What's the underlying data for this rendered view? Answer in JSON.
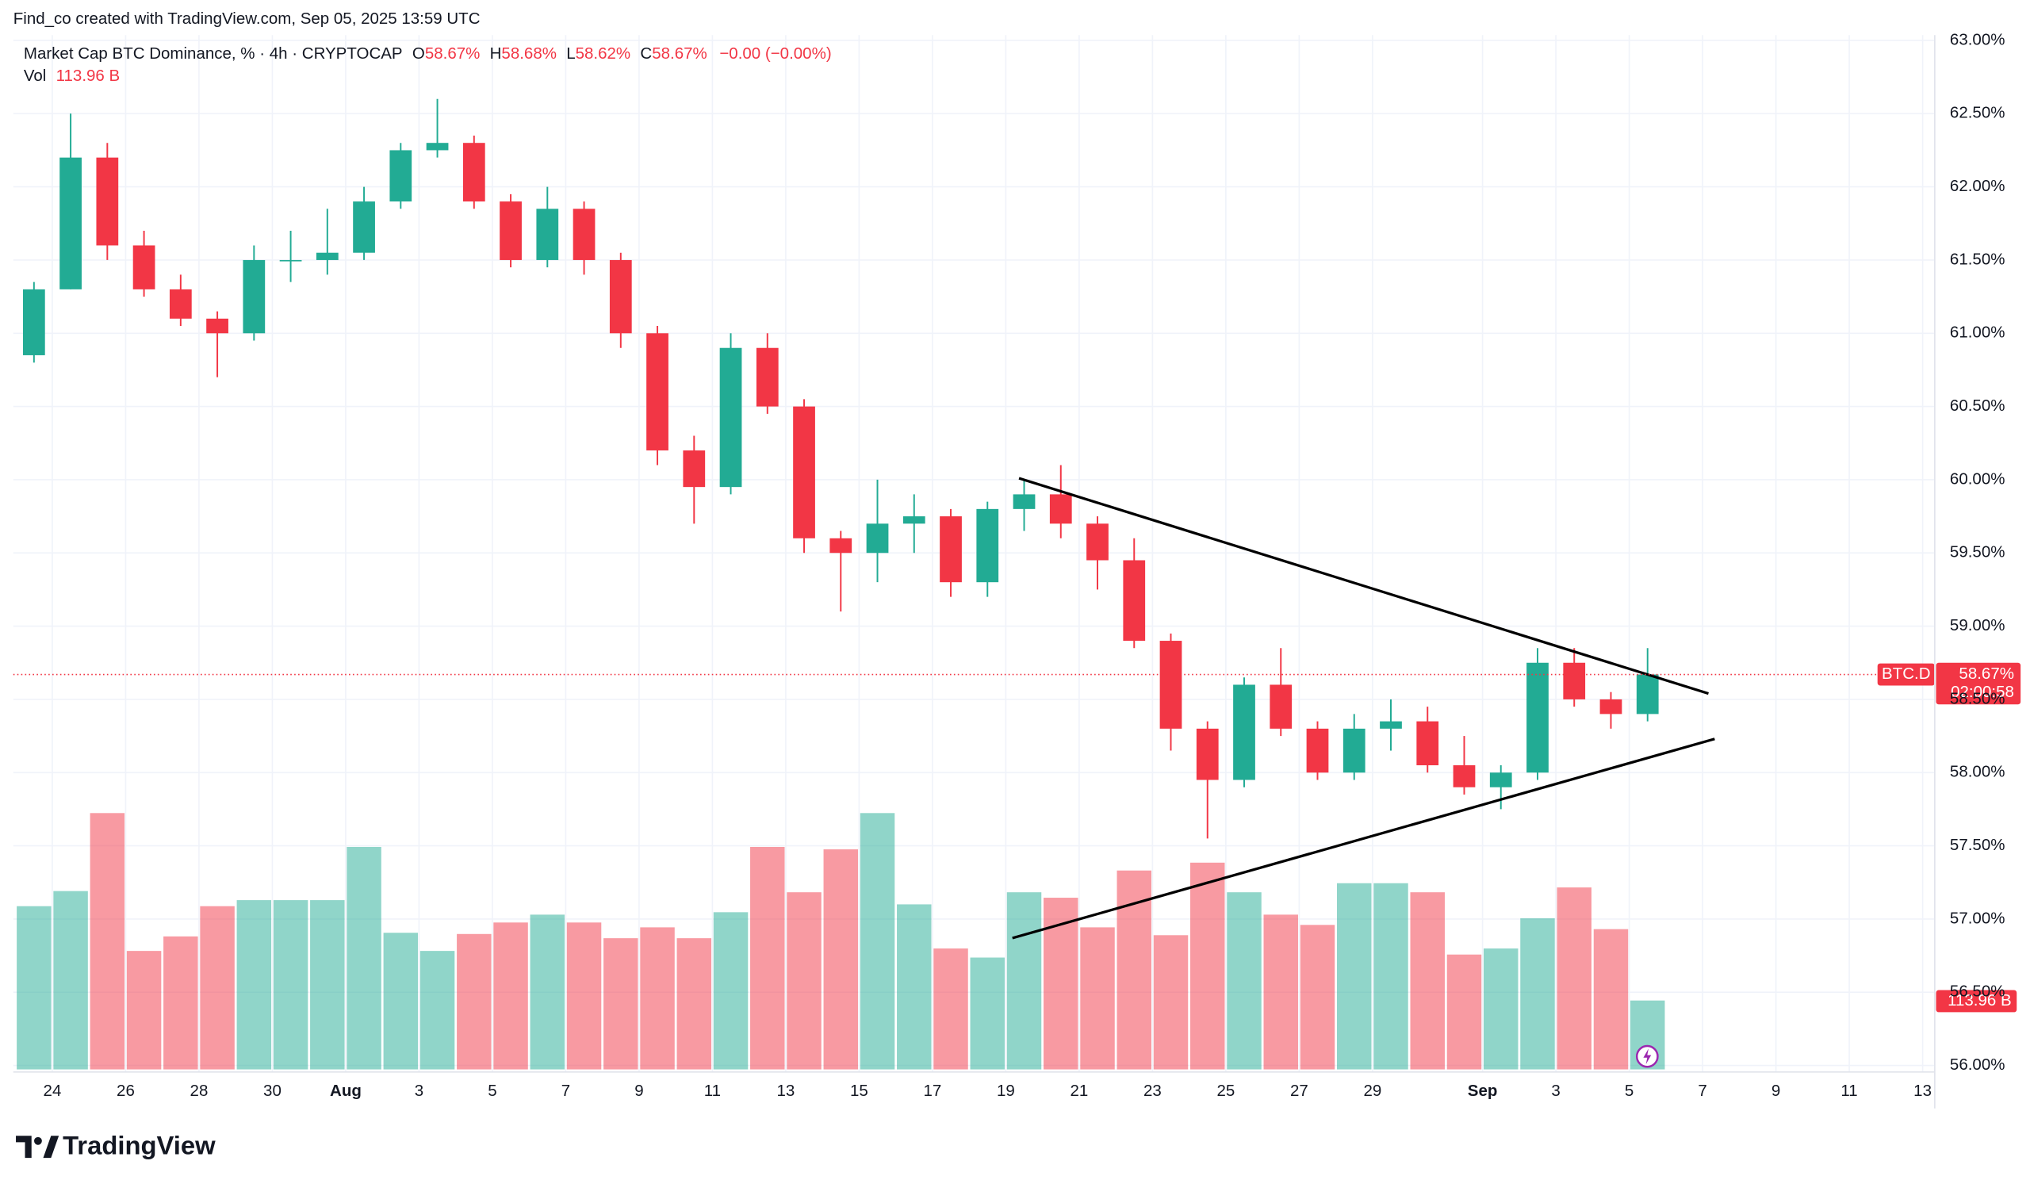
{
  "header": {
    "credit": "Find_co created with TradingView.com, Sep 05, 2025 13:59 UTC",
    "symbol": "Market Cap BTC Dominance, % · 4h · CRYPTOCAP",
    "o_key": "O",
    "o": "58.67%",
    "h_key": "H",
    "h": "58.68%",
    "l_key": "L",
    "l": "58.62%",
    "c_key": "C",
    "c": "58.67%",
    "change": "−0.00 (−0.00%)",
    "vol_key": "Vol",
    "vol": "113.96 B"
  },
  "brand": "TradingView",
  "chart_data": {
    "type": "candlestick",
    "x": [
      0.5,
      1.5,
      2.5,
      3.5,
      4.5,
      5.5,
      6.5,
      7.5,
      8.5,
      9.5,
      10.5,
      11.5,
      12.5,
      13.5,
      14.5,
      15.5,
      16.5,
      17.5,
      18.5,
      19.5,
      20.5,
      21.5,
      22.5,
      23.5,
      24.5,
      25.5,
      26.5,
      27.5,
      28.5,
      29.5,
      30.5,
      31.5,
      32.5,
      33.5,
      34.5,
      35.5,
      36.5,
      37.5,
      38.5,
      39.5,
      40.5,
      41.5,
      42.5,
      43.5,
      44.5
    ],
    "open": [
      60.85,
      61.3,
      62.2,
      61.6,
      61.3,
      61.1,
      61.0,
      61.5,
      61.5,
      61.55,
      61.9,
      62.25,
      62.3,
      61.9,
      61.5,
      61.85,
      61.5,
      61.0,
      60.2,
      59.95,
      60.9,
      60.5,
      59.6,
      59.5,
      59.7,
      59.75,
      59.3,
      59.8,
      59.9,
      59.7,
      59.45,
      58.9,
      58.3,
      57.95,
      58.6,
      58.3,
      58.0,
      58.3,
      58.35,
      58.05,
      57.9,
      58.0,
      58.75,
      58.5,
      58.4
    ],
    "high": [
      61.35,
      62.5,
      62.3,
      61.7,
      61.4,
      61.15,
      61.6,
      61.7,
      61.85,
      62.0,
      62.3,
      62.6,
      62.35,
      61.95,
      62.0,
      61.9,
      61.55,
      61.05,
      60.3,
      61.0,
      61.0,
      60.55,
      59.65,
      60.0,
      59.9,
      59.8,
      59.85,
      60.0,
      60.1,
      59.75,
      59.6,
      58.95,
      58.35,
      58.65,
      58.85,
      58.35,
      58.4,
      58.5,
      58.45,
      58.25,
      58.05,
      58.85,
      58.85,
      58.55,
      58.85
    ],
    "low": [
      60.8,
      61.3,
      61.5,
      61.25,
      61.05,
      60.7,
      60.95,
      61.35,
      61.4,
      61.5,
      61.85,
      62.2,
      61.85,
      61.45,
      61.45,
      61.4,
      60.9,
      60.1,
      59.7,
      59.9,
      60.45,
      59.5,
      59.1,
      59.3,
      59.5,
      59.2,
      59.2,
      59.65,
      59.6,
      59.25,
      58.85,
      58.15,
      57.55,
      57.9,
      58.25,
      57.95,
      57.95,
      58.15,
      58.0,
      57.85,
      57.75,
      57.95,
      58.45,
      58.3,
      58.35
    ],
    "close": [
      61.3,
      62.2,
      61.6,
      61.3,
      61.1,
      61.0,
      61.5,
      61.5,
      61.55,
      61.9,
      62.25,
      62.3,
      61.9,
      61.5,
      61.85,
      61.5,
      61.0,
      60.2,
      59.95,
      60.9,
      60.5,
      59.6,
      59.5,
      59.7,
      59.75,
      59.3,
      59.8,
      59.9,
      59.7,
      59.45,
      58.9,
      58.3,
      57.95,
      58.6,
      58.3,
      58.0,
      58.3,
      58.35,
      58.05,
      57.9,
      58.0,
      58.75,
      58.5,
      58.4,
      58.67
    ],
    "volume": [
      270,
      295,
      424,
      196,
      220,
      270,
      280,
      280,
      280,
      368,
      226,
      196,
      224,
      243,
      256,
      243,
      217,
      235,
      217,
      260,
      368,
      293,
      364,
      424,
      273,
      200,
      185,
      293,
      284,
      235,
      329,
      222,
      342,
      293,
      256,
      239,
      308,
      308,
      293,
      190,
      200,
      250,
      301,
      232,
      113.96
    ],
    "up_color": "#22ab94",
    "down_color": "#f23645",
    "xlim": [
      -0.064,
      52.26
    ],
    "ylim": [
      55.973,
      63.036
    ],
    "vol_lim": [
      0,
      850
    ],
    "xticks": [
      {
        "value": 1,
        "label": "24"
      },
      {
        "value": 3,
        "label": "26"
      },
      {
        "value": 5,
        "label": "28"
      },
      {
        "value": 7,
        "label": "30"
      },
      {
        "value": 9,
        "label": "Aug"
      },
      {
        "value": 11,
        "label": "3"
      },
      {
        "value": 13,
        "label": "5"
      },
      {
        "value": 15,
        "label": "7"
      },
      {
        "value": 17,
        "label": "9"
      },
      {
        "value": 19,
        "label": "11"
      },
      {
        "value": 21,
        "label": "13"
      },
      {
        "value": 23,
        "label": "15"
      },
      {
        "value": 25,
        "label": "17"
      },
      {
        "value": 27,
        "label": "19"
      },
      {
        "value": 29,
        "label": "21"
      },
      {
        "value": 31,
        "label": "23"
      },
      {
        "value": 33,
        "label": "25"
      },
      {
        "value": 35,
        "label": "27"
      },
      {
        "value": 37,
        "label": "29"
      },
      {
        "value": 40,
        "label": "Sep"
      },
      {
        "value": 42,
        "label": "3"
      },
      {
        "value": 44,
        "label": "5"
      },
      {
        "value": 46,
        "label": "7"
      },
      {
        "value": 48,
        "label": "9"
      },
      {
        "value": 50,
        "label": "11"
      },
      {
        "value": 52,
        "label": "13"
      }
    ],
    "yticks": [
      {
        "value": 56,
        "label": "56.00%"
      },
      {
        "value": 56.5,
        "label": "56.50%"
      },
      {
        "value": 57,
        "label": "57.00%"
      },
      {
        "value": 57.5,
        "label": "57.50%"
      },
      {
        "value": 58,
        "label": "58.00%"
      },
      {
        "value": 58.5,
        "label": "58.50%"
      },
      {
        "value": 59,
        "label": "59.00%"
      },
      {
        "value": 59.5,
        "label": "59.50%"
      },
      {
        "value": 60,
        "label": "60.00%"
      },
      {
        "value": 60.5,
        "label": "60.50%"
      },
      {
        "value": 61,
        "label": "61.00%"
      },
      {
        "value": 61.5,
        "label": "61.50%"
      },
      {
        "value": 62,
        "label": "62.00%"
      },
      {
        "value": 62.5,
        "label": "62.50%"
      },
      {
        "value": 63,
        "label": "63.00%"
      }
    ],
    "grid": true,
    "trendlines": [
      {
        "color": "#000000",
        "x": [
          27.36,
          46.16
        ],
        "y": [
          60.01,
          58.54
        ]
      },
      {
        "color": "#000000",
        "x": [
          27.18,
          46.33
        ],
        "y": [
          56.87,
          58.23
        ]
      }
    ],
    "symbol_tag": "BTC.D",
    "last_price": 58.67,
    "last_price_label": "58.67%",
    "countdown": "02:00:58",
    "last_volume_label": "113.96 B"
  }
}
